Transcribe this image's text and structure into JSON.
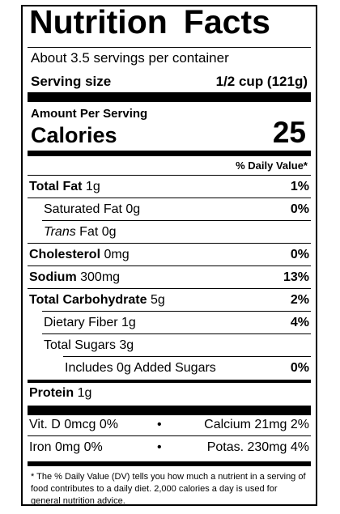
{
  "title_words": [
    "Nutrition",
    "Facts"
  ],
  "servings_per_container": "About 3.5 servings per container",
  "serving_size_label": "Serving size",
  "serving_size_value": "1/2 cup (121g)",
  "amount_per_serving": "Amount Per Serving",
  "calories_label": "Calories",
  "calories_value": "25",
  "daily_value_header": "% Daily Value*",
  "nutrients": [
    {
      "bold": "Total Fat",
      "rest": " 1g",
      "dv": "1%"
    },
    {
      "bold": "",
      "rest": "Saturated Fat 0g",
      "dv": "0%"
    },
    {
      "bold": "",
      "italic": "Trans",
      "rest": " Fat 0g",
      "dv": ""
    },
    {
      "bold": "Cholesterol",
      "rest": " 0mg",
      "dv": "0%"
    },
    {
      "bold": "Sodium",
      "rest": " 300mg",
      "dv": "13%"
    },
    {
      "bold": "Total Carbohydrate",
      "rest": " 5g",
      "dv": "2%"
    },
    {
      "bold": "",
      "rest": "Dietary Fiber 1g",
      "dv": "4%"
    },
    {
      "bold": "",
      "rest": "Total Sugars 3g",
      "dv": ""
    },
    {
      "bold": "",
      "rest": "Includes 0g Added Sugars",
      "dv": "0%"
    },
    {
      "bold": "Protein",
      "rest": " 1g",
      "dv": ""
    }
  ],
  "vitamins": [
    {
      "left": "Vit. D 0mcg 0%",
      "right": "Calcium 21mg 2%"
    },
    {
      "left": "Iron 0mg 0%",
      "right": "Potas. 230mg 4%"
    }
  ],
  "separator": "•",
  "footnote": "* The % Daily Value (DV) tells you how much a nutrient in a serving of food contributes to a daily diet. 2,000 calories a day is used for general nutrition advice."
}
